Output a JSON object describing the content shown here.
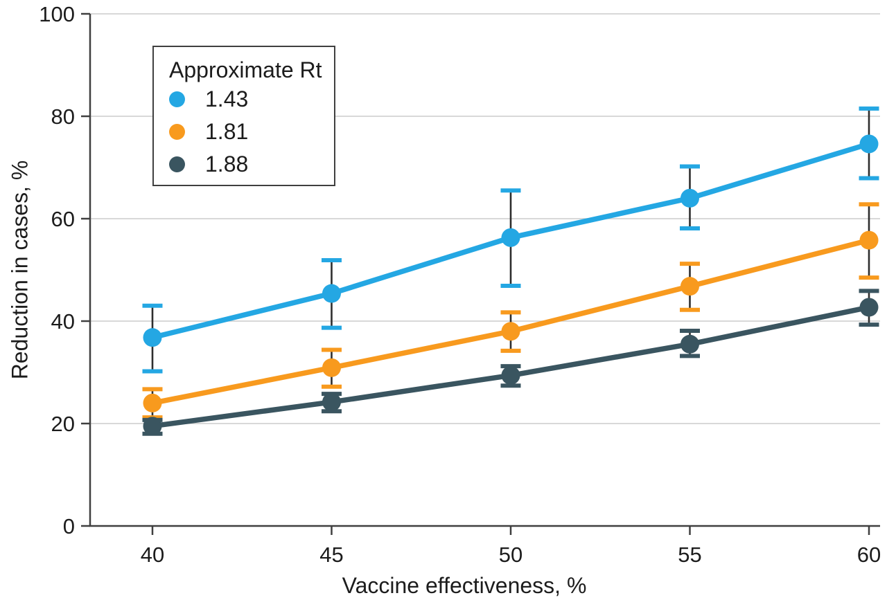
{
  "figure": {
    "description": "Line chart of reduction in cases versus vaccine effectiveness for three approximate Rt values, with error bars"
  },
  "legend": {
    "title": "Approximate Rt",
    "items": [
      {
        "label": "1.43",
        "color": "#24A7E3"
      },
      {
        "label": "1.81",
        "color": "#F89A1E"
      },
      {
        "label": "1.88",
        "color": "#3A5560"
      }
    ]
  },
  "chart_data": {
    "type": "line",
    "title": "",
    "xlabel": "Vaccine effectiveness, %",
    "ylabel": "Reduction in cases, %",
    "x": [
      40,
      45,
      50,
      55,
      60
    ],
    "x_ticks": [
      "40",
      "45",
      "50",
      "55",
      "60"
    ],
    "y_ticks": [
      "0",
      "20",
      "40",
      "60",
      "80",
      "100"
    ],
    "xlim": [
      40,
      60
    ],
    "ylim": [
      0,
      100
    ],
    "grid": "horizontal",
    "legend_position": "top-left-inside",
    "error_bars": true,
    "series": [
      {
        "name": "1.43",
        "color": "#24A7E3",
        "values": [
          36.8,
          45.4,
          56.3,
          64.0,
          74.6
        ],
        "ci_low": [
          30.2,
          38.7,
          46.9,
          58.1,
          67.9
        ],
        "ci_high": [
          43.0,
          51.9,
          65.5,
          70.2,
          81.5
        ]
      },
      {
        "name": "1.81",
        "color": "#F89A1E",
        "values": [
          24.0,
          30.9,
          38.0,
          46.8,
          55.8
        ],
        "ci_low": [
          21.2,
          27.2,
          34.2,
          42.2,
          48.5
        ],
        "ci_high": [
          26.7,
          34.4,
          41.7,
          51.2,
          62.8
        ]
      },
      {
        "name": "1.88",
        "color": "#3A5560",
        "values": [
          19.5,
          24.2,
          29.4,
          35.5,
          42.7
        ],
        "ci_low": [
          18.0,
          22.4,
          27.4,
          33.2,
          39.3
        ],
        "ci_high": [
          20.7,
          25.8,
          31.2,
          38.1,
          45.9
        ]
      }
    ]
  },
  "colors": {
    "axis": "#3f3f3f",
    "grid": "#cccccc",
    "text": "#1c1c1c",
    "error_line": "#2e2e2e",
    "background": "#ffffff"
  }
}
